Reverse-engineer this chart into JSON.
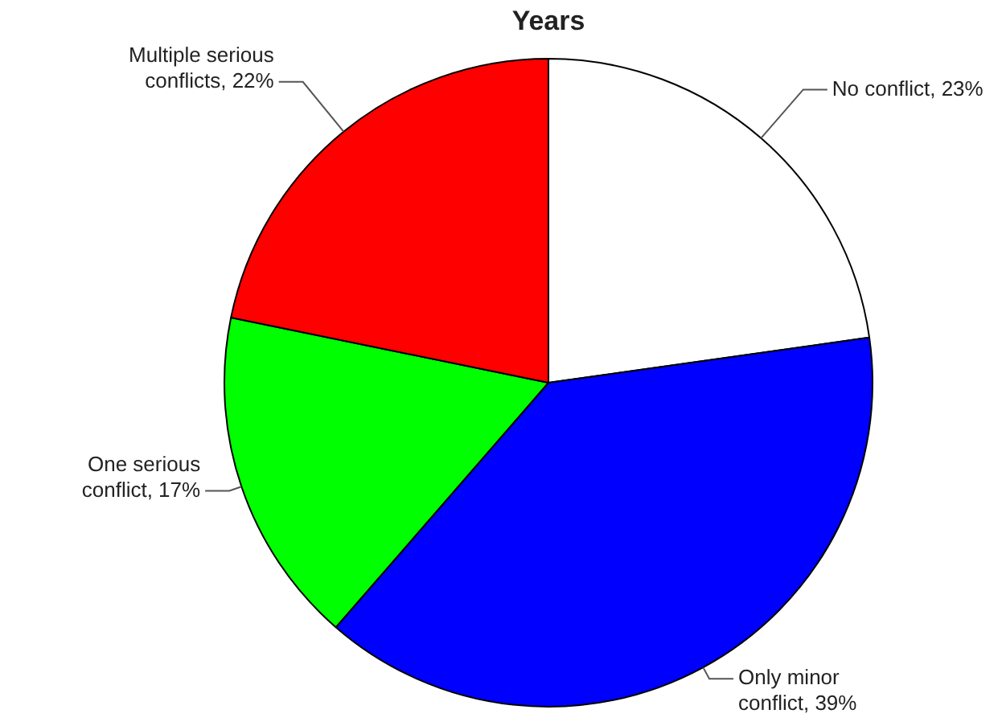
{
  "chart_data": {
    "type": "pie",
    "title": "Years",
    "categories": [
      "No conflict",
      "Only minor conflict",
      "One serious conflict",
      "Multiple serious conflicts"
    ],
    "values": [
      23,
      39,
      17,
      22
    ],
    "value_labels": [
      "23%",
      "39%",
      "17%",
      "22%"
    ],
    "colors": [
      "#ffffff",
      "#0000ff",
      "#00ff00",
      "#ff0000"
    ]
  }
}
